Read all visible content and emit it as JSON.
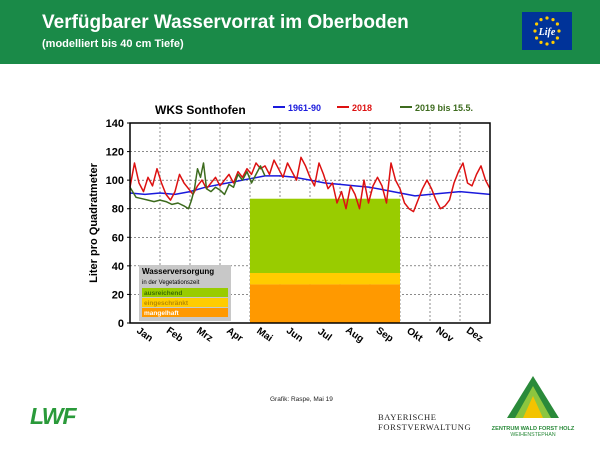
{
  "header": {
    "title": "Verfügbarer Wasservorrat im Oberboden",
    "subtitle": "(modelliert bis 40 cm Tiefe)",
    "logo_text": "Life",
    "accent_color": "#1a8a48"
  },
  "chart_data": {
    "type": "line",
    "title": "WKS Sonthofen",
    "ylabel": "Liter pro Quadratmeter",
    "ylim": [
      0,
      140
    ],
    "y_ticks": [
      0,
      20,
      40,
      60,
      80,
      100,
      120,
      140
    ],
    "x_ticks": [
      "Jan",
      "Feb",
      "Mrz",
      "Apr",
      "Mai",
      "Jun",
      "Jul",
      "Aug",
      "Sep",
      "Okt",
      "Nov",
      "Dez"
    ],
    "xlim": [
      0,
      12
    ],
    "grid": true,
    "legend_position": "top",
    "series": [
      {
        "name": "1961-90",
        "color": "#1a1adc",
        "x": [
          0,
          0.5,
          1.0,
          1.5,
          2.0,
          2.5,
          3.0,
          3.5,
          4.0,
          4.5,
          5.0,
          5.5,
          6.0,
          6.5,
          7.0,
          7.5,
          8.0,
          8.5,
          9.0,
          9.5,
          10.0,
          10.5,
          11.0,
          11.5,
          12.0
        ],
        "y": [
          91,
          90,
          91,
          90,
          92,
          95,
          97,
          99,
          101,
          103,
          103,
          102,
          100,
          98,
          97,
          96,
          95,
          93,
          91,
          89,
          90,
          91,
          92,
          91,
          90
        ]
      },
      {
        "name": "2018",
        "color": "#dd1111",
        "x": [
          0,
          0.15,
          0.3,
          0.45,
          0.6,
          0.75,
          0.9,
          1.05,
          1.2,
          1.35,
          1.5,
          1.65,
          1.8,
          1.95,
          2.1,
          2.25,
          2.4,
          2.55,
          2.7,
          2.85,
          3.0,
          3.15,
          3.3,
          3.45,
          3.6,
          3.75,
          3.9,
          4.05,
          4.2,
          4.35,
          4.5,
          4.65,
          4.8,
          4.95,
          5.1,
          5.25,
          5.4,
          5.55,
          5.7,
          5.85,
          6.0,
          6.15,
          6.3,
          6.45,
          6.6,
          6.75,
          6.9,
          7.05,
          7.2,
          7.35,
          7.5,
          7.65,
          7.8,
          7.95,
          8.1,
          8.25,
          8.4,
          8.55,
          8.7,
          8.85,
          9.0,
          9.15,
          9.3,
          9.45,
          9.6,
          9.75,
          9.9,
          10.05,
          10.2,
          10.35,
          10.5,
          10.65,
          10.8,
          10.95,
          11.1,
          11.25,
          11.4,
          11.55,
          11.7,
          11.85,
          12.0
        ],
        "y": [
          95,
          112,
          98,
          92,
          102,
          96,
          108,
          98,
          90,
          86,
          92,
          104,
          98,
          94,
          90,
          96,
          100,
          94,
          98,
          102,
          96,
          100,
          104,
          98,
          106,
          102,
          108,
          104,
          112,
          108,
          110,
          104,
          114,
          108,
          102,
          112,
          106,
          100,
          116,
          110,
          102,
          96,
          112,
          104,
          94,
          98,
          84,
          92,
          80,
          96,
          90,
          80,
          100,
          84,
          96,
          102,
          96,
          84,
          112,
          100,
          94,
          84,
          80,
          78,
          86,
          94,
          100,
          94,
          86,
          80,
          82,
          86,
          98,
          106,
          112,
          98,
          96,
          104,
          110,
          100,
          94
        ]
      },
      {
        "name": "2019 bis 15.5.",
        "color": "#3d6b1e",
        "x": [
          0,
          0.2,
          0.4,
          0.6,
          0.8,
          1.0,
          1.2,
          1.4,
          1.6,
          1.8,
          1.95,
          2.05,
          2.15,
          2.25,
          2.35,
          2.45,
          2.55,
          2.7,
          2.85,
          3.0,
          3.15,
          3.3,
          3.45,
          3.6,
          3.75,
          3.9,
          4.05,
          4.2,
          4.35,
          4.5
        ],
        "y": [
          95,
          88,
          87,
          86,
          85,
          86,
          85,
          83,
          84,
          82,
          80,
          86,
          94,
          108,
          102,
          112,
          94,
          92,
          95,
          93,
          90,
          97,
          95,
          104,
          100,
          106,
          98,
          104,
          110,
          103
        ]
      }
    ],
    "bars": [
      {
        "name": "ausreichend",
        "color": "#99cc00",
        "x_start": 4.0,
        "x_end": 9.0,
        "y_start": 35,
        "y_end": 87
      },
      {
        "name": "eingeschränkt",
        "color": "#ffcc00",
        "x_start": 4.0,
        "x_end": 9.0,
        "y_start": 27,
        "y_end": 35
      },
      {
        "name": "mangelhaft",
        "color": "#ff9900",
        "x_start": 4.0,
        "x_end": 9.0,
        "y_start": 0,
        "y_end": 27
      }
    ],
    "water_legend": {
      "title": "Wasserversorgung",
      "subtitle": "in der Vegetationszeit",
      "items": [
        "ausreichend",
        "eingeschränkt",
        "mangelhaft"
      ]
    }
  },
  "footer": {
    "credit": "Grafik: Raspe, Mai 19",
    "lwf_logo": "LWF",
    "bf_line1": "BAYERISCHE",
    "bf_line2": "FORSTVERWALTUNG",
    "zw_line1": "ZENTRUM WALD FORST HOLZ",
    "zw_line2": "WEIHENSTEPHAN"
  }
}
